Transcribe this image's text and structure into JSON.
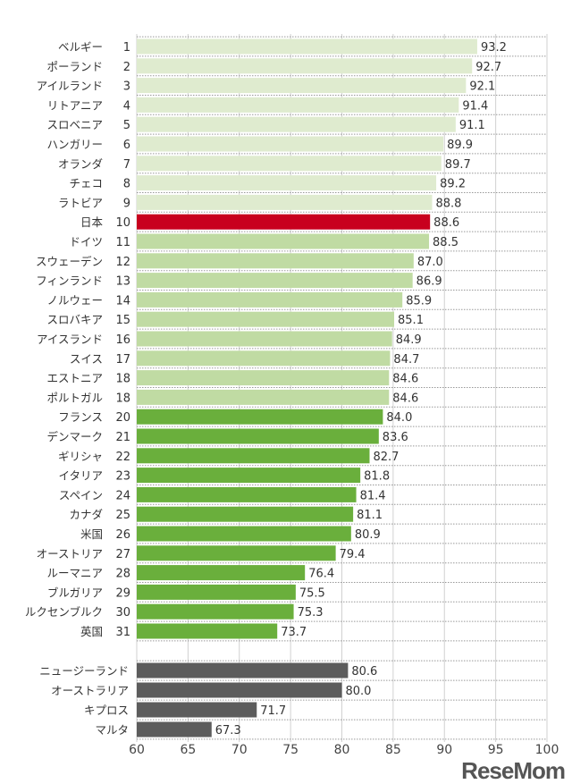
{
  "chart_data": {
    "type": "bar",
    "orientation": "horizontal",
    "title": "",
    "xlabel": "",
    "ylabel": "",
    "xlim": [
      60,
      100
    ],
    "xticks": [
      60,
      65,
      70,
      75,
      80,
      85,
      90,
      95,
      100
    ],
    "grid": true,
    "colors": {
      "tier1": "#dfebcf",
      "japan": "#c8001e",
      "tier2": "#c0dba3",
      "tier3": "#6aaf3c",
      "other": "#5c5c5c"
    },
    "groups": [
      {
        "items": [
          {
            "label": "ベルギー",
            "rank": "1",
            "value": 93.2,
            "tier": "tier1"
          },
          {
            "label": "ポーランド",
            "rank": "2",
            "value": 92.7,
            "tier": "tier1"
          },
          {
            "label": "アイルランド",
            "rank": "3",
            "value": 92.1,
            "tier": "tier1"
          },
          {
            "label": "リトアニア",
            "rank": "4",
            "value": 91.4,
            "tier": "tier1"
          },
          {
            "label": "スロベニア",
            "rank": "5",
            "value": 91.1,
            "tier": "tier1"
          },
          {
            "label": "ハンガリー",
            "rank": "6",
            "value": 89.9,
            "tier": "tier1"
          },
          {
            "label": "オランダ",
            "rank": "7",
            "value": 89.7,
            "tier": "tier1"
          },
          {
            "label": "チェコ",
            "rank": "8",
            "value": 89.2,
            "tier": "tier1"
          },
          {
            "label": "ラトビア",
            "rank": "9",
            "value": 88.8,
            "tier": "tier1"
          },
          {
            "label": "日本",
            "rank": "10",
            "value": 88.6,
            "tier": "japan"
          },
          {
            "label": "ドイツ",
            "rank": "11",
            "value": 88.5,
            "tier": "tier2"
          },
          {
            "label": "スウェーデン",
            "rank": "12",
            "value": 87.0,
            "tier": "tier2"
          },
          {
            "label": "フィンランド",
            "rank": "13",
            "value": 86.9,
            "tier": "tier2"
          },
          {
            "label": "ノルウェー",
            "rank": "14",
            "value": 85.9,
            "tier": "tier2"
          },
          {
            "label": "スロバキア",
            "rank": "15",
            "value": 85.1,
            "tier": "tier2"
          },
          {
            "label": "アイスランド",
            "rank": "16",
            "value": 84.9,
            "tier": "tier2"
          },
          {
            "label": "スイス",
            "rank": "17",
            "value": 84.7,
            "tier": "tier2"
          },
          {
            "label": "エストニア",
            "rank": "18",
            "value": 84.6,
            "tier": "tier2"
          },
          {
            "label": "ポルトガル",
            "rank": "18",
            "value": 84.6,
            "tier": "tier2"
          },
          {
            "label": "フランス",
            "rank": "20",
            "value": 84.0,
            "tier": "tier3"
          },
          {
            "label": "デンマーク",
            "rank": "21",
            "value": 83.6,
            "tier": "tier3"
          },
          {
            "label": "ギリシャ",
            "rank": "22",
            "value": 82.7,
            "tier": "tier3"
          },
          {
            "label": "イタリア",
            "rank": "23",
            "value": 81.8,
            "tier": "tier3"
          },
          {
            "label": "スペイン",
            "rank": "24",
            "value": 81.4,
            "tier": "tier3"
          },
          {
            "label": "カナダ",
            "rank": "25",
            "value": 81.1,
            "tier": "tier3"
          },
          {
            "label": "米国",
            "rank": "26",
            "value": 80.9,
            "tier": "tier3"
          },
          {
            "label": "オーストリア",
            "rank": "27",
            "value": 79.4,
            "tier": "tier3"
          },
          {
            "label": "ルーマニア",
            "rank": "28",
            "value": 76.4,
            "tier": "tier3"
          },
          {
            "label": "ブルガリア",
            "rank": "29",
            "value": 75.5,
            "tier": "tier3"
          },
          {
            "label": "ルクセンブルク",
            "rank": "30",
            "value": 75.3,
            "tier": "tier3"
          },
          {
            "label": "英国",
            "rank": "31",
            "value": 73.7,
            "tier": "tier3"
          }
        ]
      },
      {
        "items": [
          {
            "label": "ニュージーランド",
            "rank": "",
            "value": 80.6,
            "tier": "other"
          },
          {
            "label": "オーストラリア",
            "rank": "",
            "value": 80.0,
            "tier": "other"
          },
          {
            "label": "キプロス",
            "rank": "",
            "value": 71.7,
            "tier": "other"
          },
          {
            "label": "マルタ",
            "rank": "",
            "value": 67.3,
            "tier": "other"
          }
        ]
      }
    ]
  },
  "watermark": "ReseMom"
}
